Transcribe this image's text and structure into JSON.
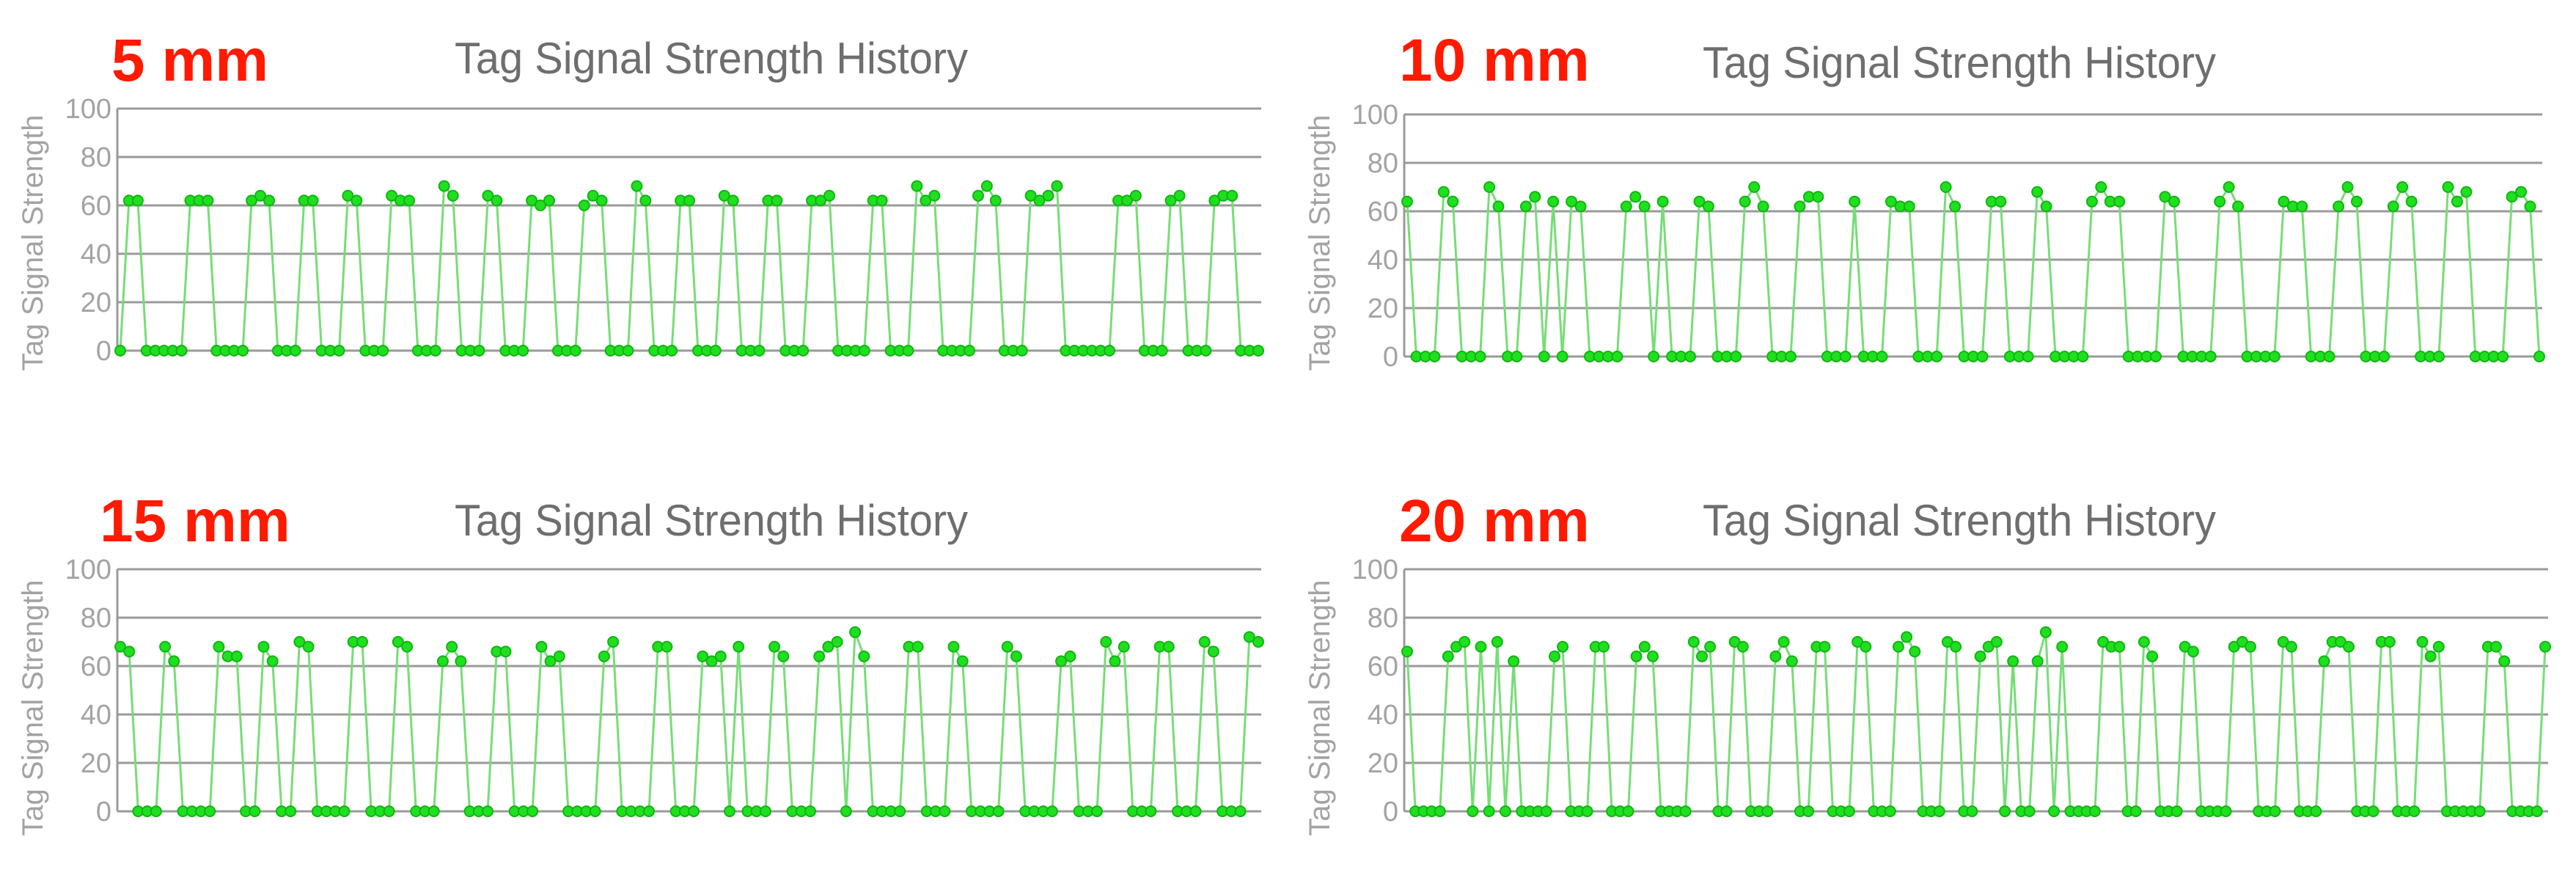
{
  "colors": {
    "label": "#ff1a00",
    "title": "#6e6e6e",
    "axis_text": "#a3a3a3",
    "grid": "#9a9a9a",
    "line": "#77dd77",
    "marker": "#1fe01f",
    "marker_edge": "#12b412"
  },
  "chart_data": [
    {
      "type": "line",
      "label": "5 mm",
      "title": "Tag Signal Strength History",
      "xlabel": "",
      "ylabel": "Tag Signal Strength",
      "ylim": [
        0,
        100
      ],
      "yticks": [
        "0",
        "20",
        "40",
        "60",
        "80",
        "100"
      ],
      "grid": true,
      "series": [
        {
          "values": [
            0,
            62,
            62,
            0,
            0,
            0,
            0,
            0,
            62,
            62,
            62,
            0,
            0,
            0,
            0,
            62,
            64,
            62,
            0,
            0,
            0,
            62,
            62,
            0,
            0,
            0,
            64,
            62,
            0,
            0,
            0,
            64,
            62,
            62,
            0,
            0,
            0,
            68,
            64,
            0,
            0,
            0,
            64,
            62,
            0,
            0,
            0,
            62,
            60,
            62,
            0,
            0,
            0,
            60,
            64,
            62,
            0,
            0,
            0,
            68,
            62,
            0,
            0,
            0,
            62,
            62,
            0,
            0,
            0,
            64,
            62,
            0,
            0,
            0,
            62,
            62,
            0,
            0,
            0,
            62,
            62,
            64,
            0,
            0,
            0,
            0,
            62,
            62,
            0,
            0,
            0,
            68,
            62,
            64,
            0,
            0,
            0,
            0,
            64,
            68,
            62,
            0,
            0,
            0,
            64,
            62,
            64,
            68,
            0,
            0,
            0,
            0,
            0,
            0,
            62,
            62,
            64,
            0,
            0,
            0,
            62,
            64,
            0,
            0,
            0,
            62,
            64,
            64,
            0,
            0,
            0
          ]
        }
      ]
    },
    {
      "type": "line",
      "label": "10 mm",
      "title": "Tag Signal Strength History",
      "xlabel": "",
      "ylabel": "Tag Signal Strength",
      "ylim": [
        0,
        100
      ],
      "yticks": [
        "0",
        "20",
        "40",
        "60",
        "80",
        "100"
      ],
      "grid": true,
      "series": [
        {
          "values": [
            64,
            0,
            0,
            0,
            68,
            64,
            0,
            0,
            0,
            70,
            62,
            0,
            0,
            62,
            66,
            0,
            64,
            0,
            64,
            62,
            0,
            0,
            0,
            0,
            62,
            66,
            62,
            0,
            64,
            0,
            0,
            0,
            64,
            62,
            0,
            0,
            0,
            64,
            70,
            62,
            0,
            0,
            0,
            62,
            66,
            66,
            0,
            0,
            0,
            64,
            0,
            0,
            0,
            64,
            62,
            62,
            0,
            0,
            0,
            70,
            62,
            0,
            0,
            0,
            64,
            64,
            0,
            0,
            0,
            68,
            62,
            0,
            0,
            0,
            0,
            64,
            70,
            64,
            64,
            0,
            0,
            0,
            0,
            66,
            64,
            0,
            0,
            0,
            0,
            64,
            70,
            62,
            0,
            0,
            0,
            0,
            64,
            62,
            62,
            0,
            0,
            0,
            62,
            70,
            64,
            0,
            0,
            0,
            62,
            70,
            64,
            0,
            0,
            0,
            70,
            64,
            68,
            0,
            0,
            0,
            0,
            66,
            68,
            62,
            0
          ]
        }
      ]
    },
    {
      "type": "line",
      "label": "15 mm",
      "title": "Tag Signal Strength History",
      "xlabel": "",
      "ylabel": "Tag Signal Strength",
      "ylim": [
        0,
        100
      ],
      "yticks": [
        "0",
        "20",
        "40",
        "60",
        "80",
        "100"
      ],
      "grid": true,
      "series": [
        {
          "values": [
            68,
            66,
            0,
            0,
            0,
            68,
            62,
            0,
            0,
            0,
            0,
            68,
            64,
            64,
            0,
            0,
            68,
            62,
            0,
            0,
            70,
            68,
            0,
            0,
            0,
            0,
            70,
            70,
            0,
            0,
            0,
            70,
            68,
            0,
            0,
            0,
            62,
            68,
            62,
            0,
            0,
            0,
            66,
            66,
            0,
            0,
            0,
            68,
            62,
            64,
            0,
            0,
            0,
            0,
            64,
            70,
            0,
            0,
            0,
            0,
            68,
            68,
            0,
            0,
            0,
            64,
            62,
            64,
            0,
            68,
            0,
            0,
            0,
            68,
            64,
            0,
            0,
            0,
            64,
            68,
            70,
            0,
            74,
            64,
            0,
            0,
            0,
            0,
            68,
            68,
            0,
            0,
            0,
            68,
            62,
            0,
            0,
            0,
            0,
            68,
            64,
            0,
            0,
            0,
            0,
            62,
            64,
            0,
            0,
            0,
            70,
            62,
            68,
            0,
            0,
            0,
            68,
            68,
            0,
            0,
            0,
            70,
            66,
            0,
            0,
            0,
            72,
            70
          ]
        }
      ]
    },
    {
      "type": "line",
      "label": "20 mm",
      "title": "Tag Signal Strength History",
      "xlabel": "",
      "ylabel": "Tag Signal Strength",
      "ylim": [
        0,
        100
      ],
      "yticks": [
        "0",
        "20",
        "40",
        "60",
        "80",
        "100"
      ],
      "grid": true,
      "series": [
        {
          "values": [
            66,
            0,
            0,
            0,
            0,
            64,
            68,
            70,
            0,
            68,
            0,
            70,
            0,
            62,
            0,
            0,
            0,
            0,
            64,
            68,
            0,
            0,
            0,
            68,
            68,
            0,
            0,
            0,
            64,
            68,
            64,
            0,
            0,
            0,
            0,
            70,
            64,
            68,
            0,
            0,
            70,
            68,
            0,
            0,
            0,
            64,
            70,
            62,
            0,
            0,
            68,
            68,
            0,
            0,
            0,
            70,
            68,
            0,
            0,
            0,
            68,
            72,
            66,
            0,
            0,
            0,
            70,
            68,
            0,
            0,
            64,
            68,
            70,
            0,
            62,
            0,
            0,
            62,
            74,
            0,
            68,
            0,
            0,
            0,
            0,
            70,
            68,
            68,
            0,
            0,
            70,
            64,
            0,
            0,
            0,
            68,
            66,
            0,
            0,
            0,
            0,
            68,
            70,
            68,
            0,
            0,
            0,
            70,
            68,
            0,
            0,
            0,
            62,
            70,
            70,
            68,
            0,
            0,
            0,
            70,
            70,
            0,
            0,
            0,
            70,
            64,
            68,
            0,
            0,
            0,
            0,
            0,
            68,
            68,
            62,
            0,
            0,
            0,
            0,
            68
          ]
        }
      ]
    }
  ]
}
